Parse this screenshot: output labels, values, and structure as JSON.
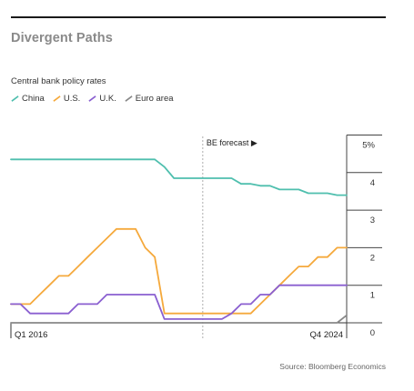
{
  "header": {
    "title": "Divergent Paths"
  },
  "source": "Source: Bloomberg Economics",
  "chart_data": {
    "type": "line",
    "title": "Divergent Paths",
    "subtitle": "Central bank policy rates",
    "xlabel": "",
    "ylabel": "",
    "x_start_label": "Q1 2016",
    "x_end_label": "Q4 2024",
    "forecast_label": "BE forecast ▶",
    "forecast_start": "Q1 2021",
    "ylim": [
      0,
      5
    ],
    "y_ticks": [
      0,
      1,
      2,
      3,
      4,
      5
    ],
    "y_tick_labels": [
      "0",
      "1",
      "2",
      "3",
      "4",
      "5%"
    ],
    "x": [
      "Q1 2016",
      "Q2 2016",
      "Q3 2016",
      "Q4 2016",
      "Q1 2017",
      "Q2 2017",
      "Q3 2017",
      "Q4 2017",
      "Q1 2018",
      "Q2 2018",
      "Q3 2018",
      "Q4 2018",
      "Q1 2019",
      "Q2 2019",
      "Q3 2019",
      "Q4 2019",
      "Q1 2020",
      "Q2 2020",
      "Q3 2020",
      "Q4 2020",
      "Q1 2021",
      "Q2 2021",
      "Q3 2021",
      "Q4 2021",
      "Q1 2022",
      "Q2 2022",
      "Q3 2022",
      "Q4 2022",
      "Q1 2023",
      "Q2 2023",
      "Q3 2023",
      "Q4 2023",
      "Q1 2024",
      "Q2 2024",
      "Q3 2024",
      "Q4 2024"
    ],
    "legend_position": "top-left",
    "series": [
      {
        "name": "China",
        "color": "#4fbfae",
        "values": [
          4.35,
          4.35,
          4.35,
          4.35,
          4.35,
          4.35,
          4.35,
          4.35,
          4.35,
          4.35,
          4.35,
          4.35,
          4.35,
          4.35,
          4.35,
          4.35,
          4.15,
          3.85,
          3.85,
          3.85,
          3.85,
          3.85,
          3.85,
          3.85,
          3.7,
          3.7,
          3.65,
          3.65,
          3.55,
          3.55,
          3.55,
          3.45,
          3.45,
          3.45,
          3.4,
          3.4
        ]
      },
      {
        "name": "U.S.",
        "color": "#f5a93c",
        "values": [
          0.5,
          0.5,
          0.5,
          0.75,
          1.0,
          1.25,
          1.25,
          1.5,
          1.75,
          2.0,
          2.25,
          2.5,
          2.5,
          2.5,
          2.0,
          1.75,
          0.25,
          0.25,
          0.25,
          0.25,
          0.25,
          0.25,
          0.25,
          0.25,
          0.25,
          0.25,
          0.5,
          0.75,
          1.0,
          1.25,
          1.5,
          1.5,
          1.75,
          1.75,
          2.0,
          2.0
        ]
      },
      {
        "name": "U.K.",
        "color": "#8a5fd0",
        "values": [
          0.5,
          0.5,
          0.25,
          0.25,
          0.25,
          0.25,
          0.25,
          0.5,
          0.5,
          0.5,
          0.75,
          0.75,
          0.75,
          0.75,
          0.75,
          0.75,
          0.1,
          0.1,
          0.1,
          0.1,
          0.1,
          0.1,
          0.1,
          0.25,
          0.5,
          0.5,
          0.75,
          0.75,
          1.0,
          1.0,
          1.0,
          1.0,
          1.0,
          1.0,
          1.0,
          1.0
        ]
      },
      {
        "name": "Euro area",
        "color": "#888888",
        "values": [
          0,
          0,
          0,
          0,
          0,
          0,
          0,
          0,
          0,
          0,
          0,
          0,
          0,
          0,
          0,
          0,
          0,
          0,
          0,
          0,
          0,
          0,
          0,
          0,
          0,
          0,
          0,
          0,
          0,
          0,
          0,
          0,
          0,
          0,
          0,
          0.2
        ]
      }
    ]
  }
}
